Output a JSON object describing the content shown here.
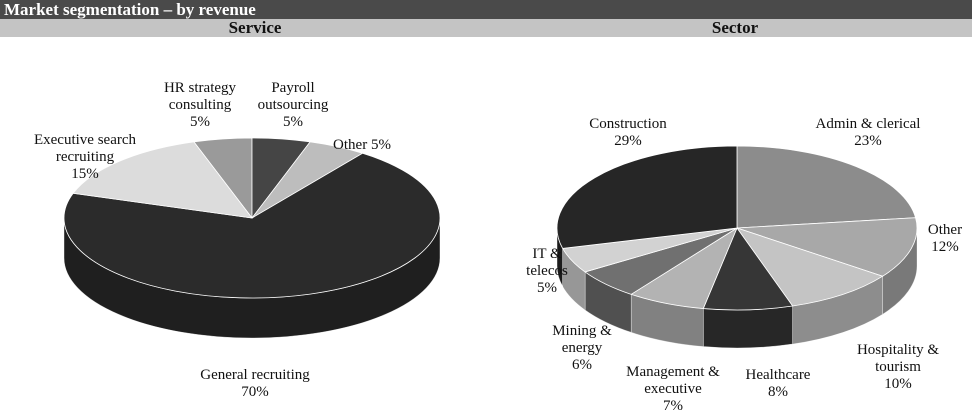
{
  "header": {
    "title": "Market segmentation – by revenue"
  },
  "chart_data": [
    {
      "type": "pie",
      "title": "Service",
      "categories": [
        "HR strategy consulting",
        "Payroll outsourcing",
        "Other",
        "General recruiting",
        "Executive search recruiting"
      ],
      "values": [
        5,
        5,
        5,
        70,
        15
      ],
      "value_labels": [
        "5%",
        "5%",
        "5%",
        "70%",
        "15%"
      ],
      "colors": [
        "#9a9a9a",
        "#454545",
        "#bdbdbd",
        "#2b2b2b",
        "#dcdcdc"
      ]
    },
    {
      "type": "pie",
      "title": "Sector",
      "categories": [
        "Admin & clerical",
        "Other",
        "Hospitality & tourism",
        "Healthcare",
        "Management & executive",
        "Mining & energy",
        "IT & telecos",
        "Construction"
      ],
      "values": [
        23,
        12,
        10,
        8,
        7,
        6,
        5,
        29
      ],
      "value_labels": [
        "23%",
        "12%",
        "10%",
        "8%",
        "7%",
        "6%",
        "5%",
        "29%"
      ],
      "colors": [
        "#8c8c8c",
        "#a8a8a8",
        "#c4c4c4",
        "#363636",
        "#b3b3b3",
        "#707070",
        "#d2d2d2",
        "#262626"
      ]
    }
  ]
}
